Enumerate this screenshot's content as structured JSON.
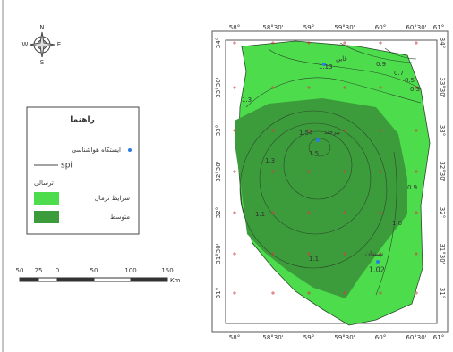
{
  "compass": {
    "labels": [
      "N",
      "E",
      "S",
      "W"
    ]
  },
  "legend": {
    "title": "راهنما",
    "items": [
      {
        "label": "ایستگاه هواشناسی"
      },
      {
        "label": "spi"
      }
    ],
    "group_title": "ترسالی",
    "classes": [
      {
        "label": "شرایط نرمال",
        "color": "#4cdc4c"
      },
      {
        "label": "متوسط",
        "color": "#3c9c3c"
      }
    ]
  },
  "scale_bar": {
    "labels": [
      "50",
      "25",
      "0",
      "50",
      "100",
      "150"
    ],
    "unit": "Km"
  },
  "grid": {
    "longitudes": [
      "58°",
      "58°30'",
      "59°",
      "59°30'",
      "60°",
      "60°30'",
      "61°"
    ],
    "latitudes": [
      "34°",
      "33°30'",
      "33°",
      "32°30'",
      "32°",
      "31°30'",
      "31°"
    ]
  },
  "stations": [
    {
      "name": "قاین",
      "value": "1.13"
    },
    {
      "name": "بیرجند",
      "value": "1.54"
    },
    {
      "name": "نهبندان",
      "value": "1.02"
    }
  ],
  "contour_labels": [
    "0.9",
    "0.7",
    "0.5",
    "0.3",
    "1.3",
    "1.5",
    "1.3",
    "1.1",
    "1.0",
    "0.9",
    "1.1"
  ]
}
